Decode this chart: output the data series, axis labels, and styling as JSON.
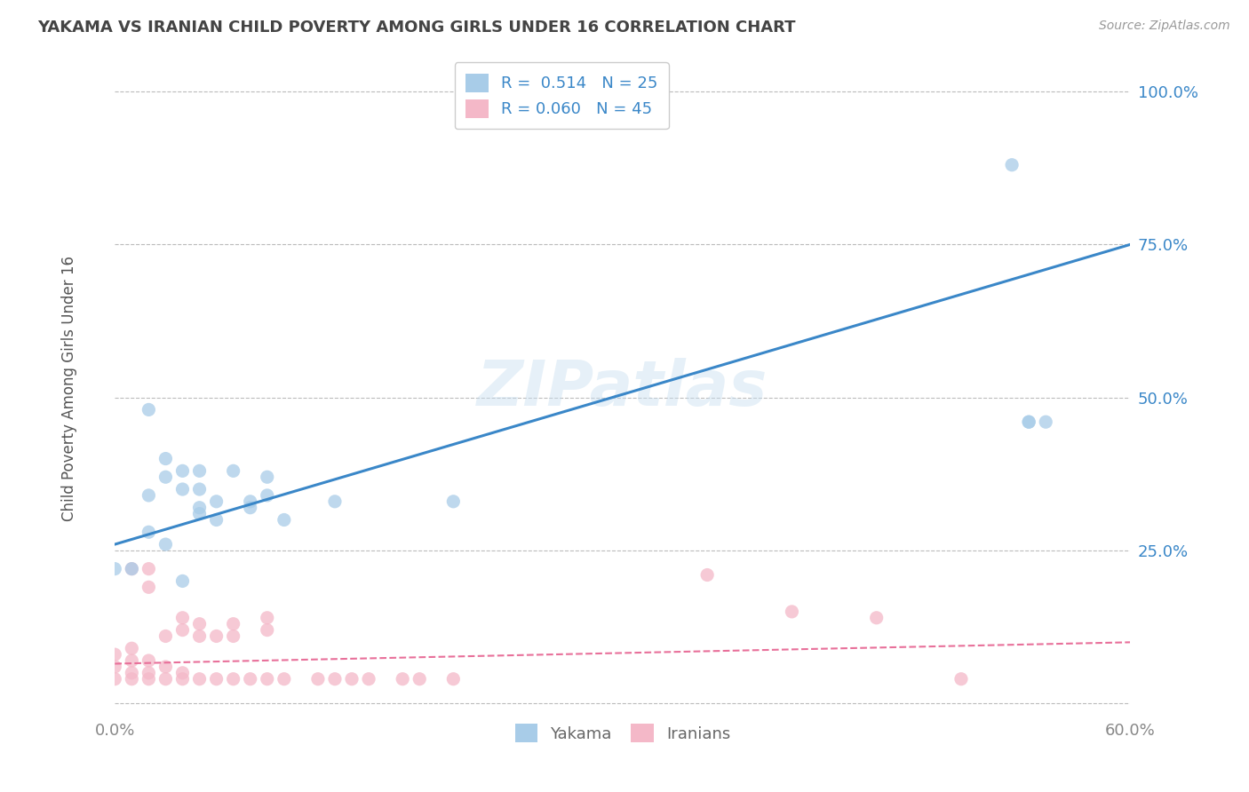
{
  "title": "YAKAMA VS IRANIAN CHILD POVERTY AMONG GIRLS UNDER 16 CORRELATION CHART",
  "source": "Source: ZipAtlas.com",
  "ylabel": "Child Poverty Among Girls Under 16",
  "xlim": [
    0.0,
    0.6
  ],
  "ylim": [
    -0.02,
    1.05
  ],
  "yticks": [
    0.0,
    0.25,
    0.5,
    0.75,
    1.0
  ],
  "ytick_labels": [
    "",
    "25.0%",
    "50.0%",
    "75.0%",
    "100.0%"
  ],
  "xticks": [
    0.0,
    0.1,
    0.2,
    0.3,
    0.4,
    0.5,
    0.6
  ],
  "xtick_labels": [
    "0.0%",
    "",
    "",
    "",
    "",
    "",
    "60.0%"
  ],
  "watermark": "ZIPatlas",
  "legend_R_yakama": "R =  0.514   N = 25",
  "legend_R_iranian": "R = 0.060   N = 45",
  "yakama_color": "#A8CCE8",
  "iranian_color": "#F4B8C8",
  "yakama_line_color": "#3A87C8",
  "iranian_line_color": "#E8709A",
  "background_color": "#FFFFFF",
  "grid_color": "#BBBBBB",
  "title_color": "#444444",
  "axis_label_color": "#555555",
  "legend_value_color": "#3A87C8",
  "yakama_x": [
    0.02,
    0.03,
    0.03,
    0.04,
    0.04,
    0.05,
    0.05,
    0.05,
    0.06,
    0.06,
    0.07,
    0.08,
    0.08,
    0.09,
    0.09,
    0.1,
    0.13,
    0.2,
    0.53,
    0.54
  ],
  "yakama_y": [
    0.48,
    0.37,
    0.4,
    0.35,
    0.38,
    0.31,
    0.35,
    0.38,
    0.3,
    0.33,
    0.38,
    0.32,
    0.33,
    0.34,
    0.37,
    0.3,
    0.33,
    0.33,
    0.88,
    0.46
  ],
  "yakama_x2": [
    0.0,
    0.01,
    0.02,
    0.02,
    0.03,
    0.04,
    0.05,
    0.54,
    0.55
  ],
  "yakama_y2": [
    0.22,
    0.22,
    0.28,
    0.34,
    0.26,
    0.2,
    0.32,
    0.46,
    0.46
  ],
  "iranian_x": [
    0.0,
    0.0,
    0.0,
    0.01,
    0.01,
    0.01,
    0.01,
    0.01,
    0.02,
    0.02,
    0.02,
    0.02,
    0.02,
    0.03,
    0.03,
    0.03,
    0.04,
    0.04,
    0.04,
    0.04,
    0.05,
    0.05,
    0.05,
    0.06,
    0.06,
    0.07,
    0.07,
    0.07,
    0.08,
    0.09,
    0.09,
    0.09,
    0.1,
    0.12,
    0.13,
    0.14,
    0.15,
    0.17,
    0.18,
    0.2,
    0.35,
    0.4,
    0.45,
    0.5
  ],
  "iranian_y": [
    0.04,
    0.06,
    0.08,
    0.04,
    0.05,
    0.07,
    0.09,
    0.22,
    0.04,
    0.05,
    0.07,
    0.19,
    0.22,
    0.04,
    0.06,
    0.11,
    0.04,
    0.05,
    0.12,
    0.14,
    0.04,
    0.11,
    0.13,
    0.04,
    0.11,
    0.04,
    0.11,
    0.13,
    0.04,
    0.04,
    0.12,
    0.14,
    0.04,
    0.04,
    0.04,
    0.04,
    0.04,
    0.04,
    0.04,
    0.04,
    0.21,
    0.15,
    0.14,
    0.04
  ],
  "yakama_line_x": [
    0.0,
    0.6
  ],
  "yakama_line_y": [
    0.26,
    0.75
  ],
  "iranian_line_x": [
    0.0,
    0.6
  ],
  "iranian_line_y": [
    0.065,
    0.1
  ]
}
